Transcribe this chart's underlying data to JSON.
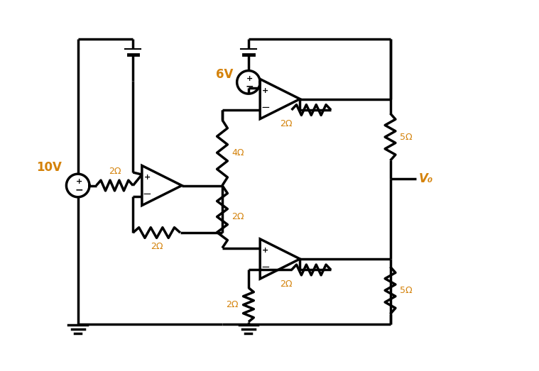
{
  "bg_color": "#ffffff",
  "line_color": "#000000",
  "label_color": "#d4820a",
  "fig_width": 7.59,
  "fig_height": 5.23,
  "dpi": 100,
  "xlim": [
    0,
    10
  ],
  "ylim": [
    0,
    7
  ],
  "v1_label": "10V",
  "v2_label": "6V",
  "r_labels": {
    "r2_left": "2Ω",
    "r2_feedback1": "2Ω",
    "r4_top": "4Ω",
    "r2_mid_top": "2Ω",
    "r2_mid_bot": "2Ω",
    "r2_feedback2": "2Ω",
    "r2_bot_ground": "2Ω",
    "r5_top": "5Ω",
    "r5_bot": "5Ω"
  },
  "v0_label": "V₀"
}
